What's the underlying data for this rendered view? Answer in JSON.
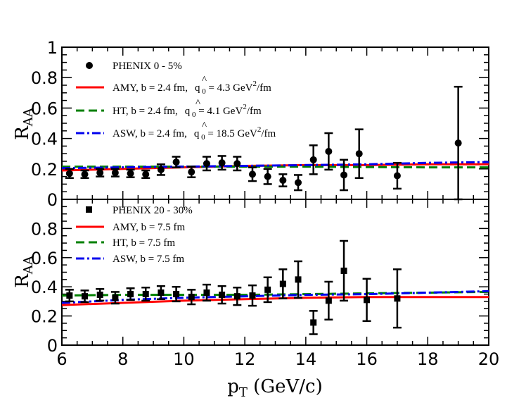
{
  "colors": {
    "amy": "#ff0000",
    "ht": "#008000",
    "asw": "#0000ee",
    "data": "#000000"
  },
  "chart_data": [
    {
      "type": "scatter",
      "panel": "top",
      "xlabel_main": "p",
      "xlabel_sub": "T",
      "xlabel_rest": " (GeV/c)",
      "ylabel_main": "R",
      "ylabel_sub": "AA",
      "xlim": [
        6,
        20
      ],
      "ylim": [
        0,
        1
      ],
      "xticks": [
        6,
        8,
        10,
        12,
        14,
        16,
        18,
        20
      ],
      "xtick_labels": [
        "6",
        "8",
        "10",
        "12",
        "14",
        "16",
        "18",
        "20"
      ],
      "yticks": [
        0,
        0.2,
        0.4,
        0.6,
        0.8,
        1
      ],
      "ytick_labels": [
        "0",
        "0.2",
        "0.4",
        "0.6",
        "0.8",
        "1"
      ],
      "legend": [
        {
          "label": "PHENIX 0 - 5%",
          "style": "dot"
        },
        {
          "label": "AMY, b = 2.4 fm,",
          "math_before": "",
          "math_sup": "",
          "math_after": "",
          "qhat": " 0",
          "value": " = 4.3 GeV",
          "sup": "2",
          "tail": "/fm",
          "style": "amy"
        },
        {
          "label": "HT, b = 2.4 fm,",
          "qhat": " 0",
          "value": " = 4.1 GeV",
          "sup": "2",
          "tail": "/fm",
          "style": "ht"
        },
        {
          "label": "ASW, b = 2.4 fm,",
          "qhat": " 0",
          "value": " = 18.5 GeV",
          "sup": "2",
          "tail": "/fm",
          "style": "asw"
        }
      ],
      "qhat_symbol": "q",
      "points": [
        {
          "x": 6.25,
          "y": 0.17,
          "err": 0.03
        },
        {
          "x": 6.75,
          "y": 0.165,
          "err": 0.025
        },
        {
          "x": 7.25,
          "y": 0.175,
          "err": 0.025
        },
        {
          "x": 7.75,
          "y": 0.175,
          "err": 0.025
        },
        {
          "x": 8.25,
          "y": 0.17,
          "err": 0.025
        },
        {
          "x": 8.75,
          "y": 0.165,
          "err": 0.025
        },
        {
          "x": 9.25,
          "y": 0.195,
          "err": 0.035
        },
        {
          "x": 9.75,
          "y": 0.245,
          "err": 0.035
        },
        {
          "x": 10.25,
          "y": 0.18,
          "err": 0.035
        },
        {
          "x": 10.75,
          "y": 0.235,
          "err": 0.045
        },
        {
          "x": 11.25,
          "y": 0.24,
          "err": 0.045
        },
        {
          "x": 11.75,
          "y": 0.235,
          "err": 0.045
        },
        {
          "x": 12.25,
          "y": 0.165,
          "err": 0.045
        },
        {
          "x": 12.75,
          "y": 0.15,
          "err": 0.05
        },
        {
          "x": 13.25,
          "y": 0.125,
          "err": 0.04
        },
        {
          "x": 13.75,
          "y": 0.11,
          "err": 0.05
        },
        {
          "x": 14.25,
          "y": 0.26,
          "err": 0.095
        },
        {
          "x": 14.75,
          "y": 0.315,
          "err": 0.12
        },
        {
          "x": 15.25,
          "y": 0.16,
          "err": 0.1
        },
        {
          "x": 15.75,
          "y": 0.3,
          "err": 0.16
        },
        {
          "x": 17.0,
          "y": 0.155,
          "err": 0.085
        },
        {
          "x": 19.0,
          "y": 0.37,
          "err": 0.37
        }
      ],
      "series": [
        {
          "name": "AMY",
          "style": "amy",
          "x": [
            6,
            8,
            10,
            12,
            14,
            16,
            18,
            20
          ],
          "y": [
            0.19,
            0.2,
            0.21,
            0.22,
            0.225,
            0.225,
            0.23,
            0.23
          ]
        },
        {
          "name": "HT",
          "style": "ht",
          "x": [
            6,
            8,
            10,
            12,
            14,
            16,
            18,
            20
          ],
          "y": [
            0.215,
            0.215,
            0.215,
            0.215,
            0.215,
            0.212,
            0.21,
            0.21
          ]
        },
        {
          "name": "ASW",
          "style": "asw",
          "x": [
            6,
            8,
            10,
            12,
            14,
            16,
            18,
            20
          ],
          "y": [
            0.205,
            0.21,
            0.215,
            0.22,
            0.225,
            0.23,
            0.24,
            0.245
          ]
        }
      ]
    },
    {
      "type": "scatter",
      "panel": "bottom",
      "ylabel_main": "R",
      "ylabel_sub": "AA",
      "xlim": [
        6,
        20
      ],
      "ylim": [
        0,
        1
      ],
      "yticks": [
        0,
        0.2,
        0.4,
        0.6,
        0.8
      ],
      "ytick_labels": [
        "0",
        "0.2",
        "0.4",
        "0.6",
        "0.8"
      ],
      "legend": [
        {
          "label": "PHENIX 20 - 30%",
          "style": "square"
        },
        {
          "label": "AMY, b = 7.5 fm",
          "style": "amy"
        },
        {
          "label": "HT, b = 7.5 fm",
          "style": "ht"
        },
        {
          "label": "ASW, b = 7.5 fm",
          "style": "asw"
        }
      ],
      "points": [
        {
          "x": 6.25,
          "y": 0.34,
          "err": 0.04
        },
        {
          "x": 6.75,
          "y": 0.335,
          "err": 0.04
        },
        {
          "x": 7.25,
          "y": 0.345,
          "err": 0.04
        },
        {
          "x": 7.75,
          "y": 0.325,
          "err": 0.04
        },
        {
          "x": 8.25,
          "y": 0.35,
          "err": 0.04
        },
        {
          "x": 8.75,
          "y": 0.35,
          "err": 0.045
        },
        {
          "x": 9.25,
          "y": 0.36,
          "err": 0.045
        },
        {
          "x": 9.75,
          "y": 0.35,
          "err": 0.05
        },
        {
          "x": 10.25,
          "y": 0.33,
          "err": 0.05
        },
        {
          "x": 10.75,
          "y": 0.36,
          "err": 0.055
        },
        {
          "x": 11.25,
          "y": 0.345,
          "err": 0.06
        },
        {
          "x": 11.75,
          "y": 0.335,
          "err": 0.06
        },
        {
          "x": 12.25,
          "y": 0.34,
          "err": 0.07
        },
        {
          "x": 12.75,
          "y": 0.38,
          "err": 0.085
        },
        {
          "x": 13.25,
          "y": 0.42,
          "err": 0.1
        },
        {
          "x": 13.75,
          "y": 0.45,
          "err": 0.125
        },
        {
          "x": 14.25,
          "y": 0.155,
          "err": 0.08
        },
        {
          "x": 14.75,
          "y": 0.305,
          "err": 0.13
        },
        {
          "x": 15.25,
          "y": 0.51,
          "err": 0.205
        },
        {
          "x": 16.0,
          "y": 0.31,
          "err": 0.145
        },
        {
          "x": 17.0,
          "y": 0.32,
          "err": 0.2
        }
      ],
      "series": [
        {
          "name": "AMY",
          "style": "amy",
          "x": [
            6,
            8,
            10,
            12,
            14,
            16,
            18,
            20
          ],
          "y": [
            0.275,
            0.29,
            0.305,
            0.315,
            0.325,
            0.33,
            0.33,
            0.33
          ]
        },
        {
          "name": "HT",
          "style": "ht",
          "x": [
            6,
            8,
            10,
            12,
            14,
            16,
            18,
            20
          ],
          "y": [
            0.34,
            0.345,
            0.345,
            0.345,
            0.35,
            0.355,
            0.36,
            0.365
          ]
        },
        {
          "name": "ASW",
          "style": "asw",
          "x": [
            6,
            8,
            10,
            12,
            14,
            16,
            18,
            20
          ],
          "y": [
            0.29,
            0.31,
            0.325,
            0.335,
            0.345,
            0.35,
            0.36,
            0.37
          ]
        }
      ]
    }
  ]
}
